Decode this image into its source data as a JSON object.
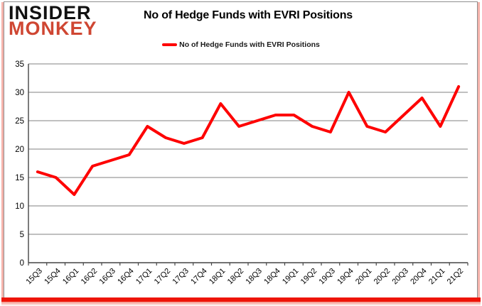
{
  "logo": {
    "line1": "INSIDER",
    "line2": "MONKEY"
  },
  "title": "No of Hedge Funds with EVRI Positions",
  "legend": {
    "label": "No of Hedge Funds with EVRI Positions"
  },
  "colors": {
    "line": "#fe0000",
    "logo_black": "#111111",
    "logo_red": "#cf4632",
    "grid": "#808080",
    "axis": "#454545",
    "tick_label": "#000000",
    "frame_border": "#8f8f8f",
    "side_shadow": "#f5b3ab",
    "bottom_bar": "#ee1408"
  },
  "chart_data": {
    "type": "line",
    "title": "No of Hedge Funds with EVRI Positions",
    "categories": [
      "15Q3",
      "15Q4",
      "16Q1",
      "16Q2",
      "16Q3",
      "16Q4",
      "17Q1",
      "17Q2",
      "17Q3",
      "17Q4",
      "18Q1",
      "18Q2",
      "18Q3",
      "18Q4",
      "19Q1",
      "19Q2",
      "19Q3",
      "19Q4",
      "20Q1",
      "20Q2",
      "20Q3",
      "20Q4",
      "21Q1",
      "21Q2"
    ],
    "series": [
      {
        "name": "No of Hedge Funds with EVRI Positions",
        "values": [
          16,
          15,
          12,
          17,
          18,
          19,
          24,
          22,
          21,
          22,
          28,
          24,
          25,
          26,
          26,
          24,
          23,
          30,
          24,
          23,
          26,
          29,
          24,
          31
        ]
      }
    ],
    "ylim": [
      0,
      35
    ],
    "yticks": [
      0,
      5,
      10,
      15,
      20,
      25,
      30,
      35
    ],
    "grid": true,
    "legend_position": "top"
  }
}
